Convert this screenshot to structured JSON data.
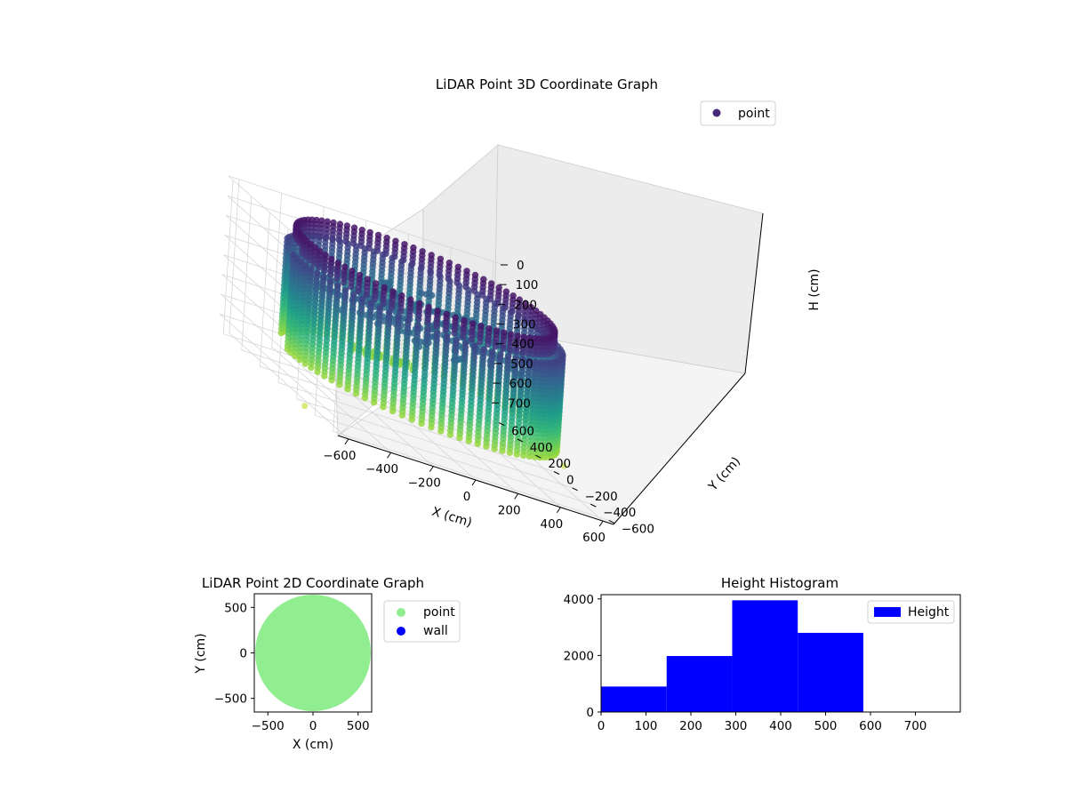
{
  "chart_data": [
    {
      "type": "scatter",
      "title": "LiDAR Point 3D Coordinate Graph",
      "xlabel": "X (cm)",
      "ylabel": "Y (cm)",
      "zlabel": "H (cm)",
      "xticks": [
        "−600",
        "−400",
        "−200",
        "0",
        "200",
        "400",
        "600"
      ],
      "yticks": [
        "−600",
        "−400",
        "−200",
        "0",
        "200",
        "400",
        "600"
      ],
      "zticks": [
        "0",
        "100",
        "200",
        "300",
        "400",
        "500",
        "600",
        "700"
      ],
      "xlim": [
        -650,
        650
      ],
      "ylim": [
        -650,
        650
      ],
      "zlim": [
        780,
        0
      ],
      "z_axis_inverted": true,
      "legend": [
        {
          "name": "point",
          "color": "#482878"
        }
      ],
      "legend_position": "top-right",
      "colormap": "viridis",
      "grid": true,
      "shape": "cylindrical wall of points, radius ≈ 600 cm, heights ≈ 0–600 cm, with a gap on the left side",
      "series": [
        {
          "name": "point",
          "radius": 600,
          "height_range": [
            0,
            600
          ]
        }
      ]
    },
    {
      "type": "scatter",
      "title": "LiDAR Point 2D Coordinate Graph",
      "xlabel": "X (cm)",
      "ylabel": "Y (cm)",
      "xticks": [
        "−500",
        "0",
        "500"
      ],
      "yticks": [
        "−500",
        "0",
        "500"
      ],
      "xlim": [
        -650,
        650
      ],
      "ylim": [
        -650,
        650
      ],
      "legend": [
        {
          "name": "point",
          "color": "#90ee90"
        },
        {
          "name": "wall",
          "color": "#0000ff"
        }
      ],
      "legend_position": "outside-right",
      "series": [
        {
          "name": "point",
          "shape": "filled disc",
          "radius": 640
        },
        {
          "name": "wall",
          "values": []
        }
      ]
    },
    {
      "type": "bar",
      "title": "Height Histogram",
      "xticks": [
        "0",
        "100",
        "200",
        "300",
        "400",
        "500",
        "600",
        "700"
      ],
      "yticks": [
        "0",
        "2000",
        "4000"
      ],
      "xlim": [
        0,
        800
      ],
      "ylim": [
        0,
        4150
      ],
      "legend": [
        {
          "name": "Height",
          "color": "#0000ff"
        }
      ],
      "legend_position": "top-right",
      "bins": [
        {
          "from": 0,
          "to": 146,
          "value": 900
        },
        {
          "from": 146,
          "to": 292,
          "value": 1980
        },
        {
          "from": 292,
          "to": 438,
          "value": 3950
        },
        {
          "from": 438,
          "to": 584,
          "value": 2800
        }
      ]
    }
  ]
}
